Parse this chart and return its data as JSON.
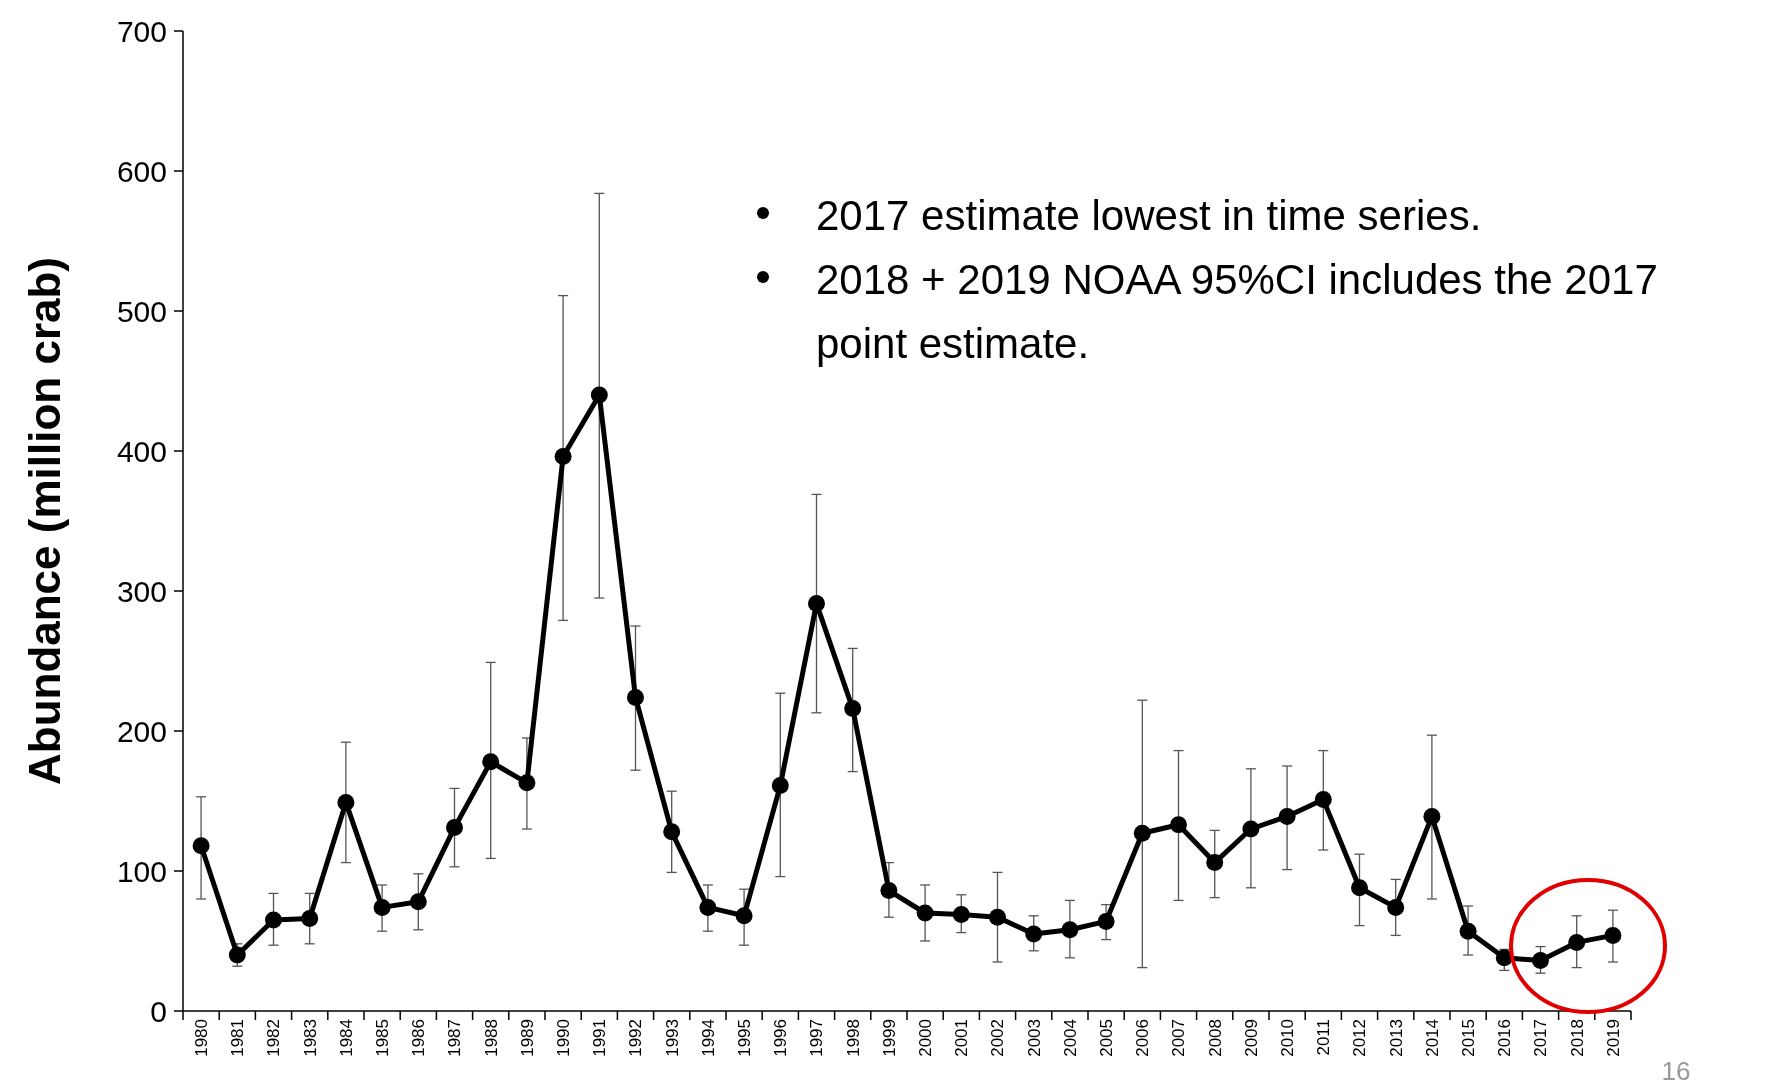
{
  "chart_data": {
    "type": "line",
    "ylabel": "Abundance (million crab)",
    "categories": [
      "1980",
      "1981",
      "1982",
      "1983",
      "1984",
      "1985",
      "1986",
      "1987",
      "1988",
      "1989",
      "1990",
      "1991",
      "1992",
      "1993",
      "1994",
      "1995",
      "1996",
      "1997",
      "1998",
      "1999",
      "2000",
      "2001",
      "2002",
      "2003",
      "2004",
      "2005",
      "2006",
      "2007",
      "2008",
      "2009",
      "2010",
      "2011",
      "2012",
      "2013",
      "2014",
      "2015",
      "2016",
      "2017",
      "2018",
      "2019"
    ],
    "series": [
      {
        "color": "#000000",
        "values": [
          118,
          40,
          65,
          66,
          149,
          74,
          78,
          131,
          178,
          163,
          396,
          440,
          224,
          128,
          74,
          68,
          161,
          291,
          216,
          86,
          70,
          69,
          67,
          55,
          58,
          64,
          127,
          133,
          106,
          130,
          139,
          151,
          88,
          74,
          139,
          57,
          38,
          36,
          49,
          54
        ],
        "errors": [
          [
            80,
            153
          ],
          [
            32,
            48
          ],
          [
            47,
            84
          ],
          [
            48,
            84
          ],
          [
            106,
            192
          ],
          [
            57,
            90
          ],
          [
            58,
            98
          ],
          [
            103,
            159
          ],
          [
            109,
            249
          ],
          [
            130,
            195
          ],
          [
            279,
            511
          ],
          [
            295,
            584
          ],
          [
            172,
            275
          ],
          [
            99,
            157
          ],
          [
            57,
            90
          ],
          [
            47,
            87
          ],
          [
            96,
            227
          ],
          [
            213,
            369
          ],
          [
            171,
            259
          ],
          [
            67,
            106
          ],
          [
            50,
            90
          ],
          [
            56,
            83
          ],
          [
            35,
            99
          ],
          [
            43,
            68
          ],
          [
            38,
            79
          ],
          [
            51,
            76
          ],
          [
            31,
            222
          ],
          [
            79,
            186
          ],
          [
            81,
            129
          ],
          [
            88,
            173
          ],
          [
            101,
            175
          ],
          [
            115,
            186
          ],
          [
            61,
            112
          ],
          [
            54,
            94
          ],
          [
            80,
            197
          ],
          [
            40,
            75
          ],
          [
            29,
            44
          ],
          [
            27,
            46
          ],
          [
            31,
            68
          ],
          [
            35,
            72
          ]
        ]
      }
    ],
    "ylim": [
      0,
      700
    ],
    "yticks": [
      0,
      100,
      200,
      300,
      400,
      500,
      600,
      700
    ],
    "grid": false,
    "marker": "circle",
    "line_style": "solid",
    "annotations": [
      "2017 estimate lowest in time series.",
      "2018 + 2019 NOAA 95%CI includes the 2017 point estimate.",
      "16"
    ]
  }
}
